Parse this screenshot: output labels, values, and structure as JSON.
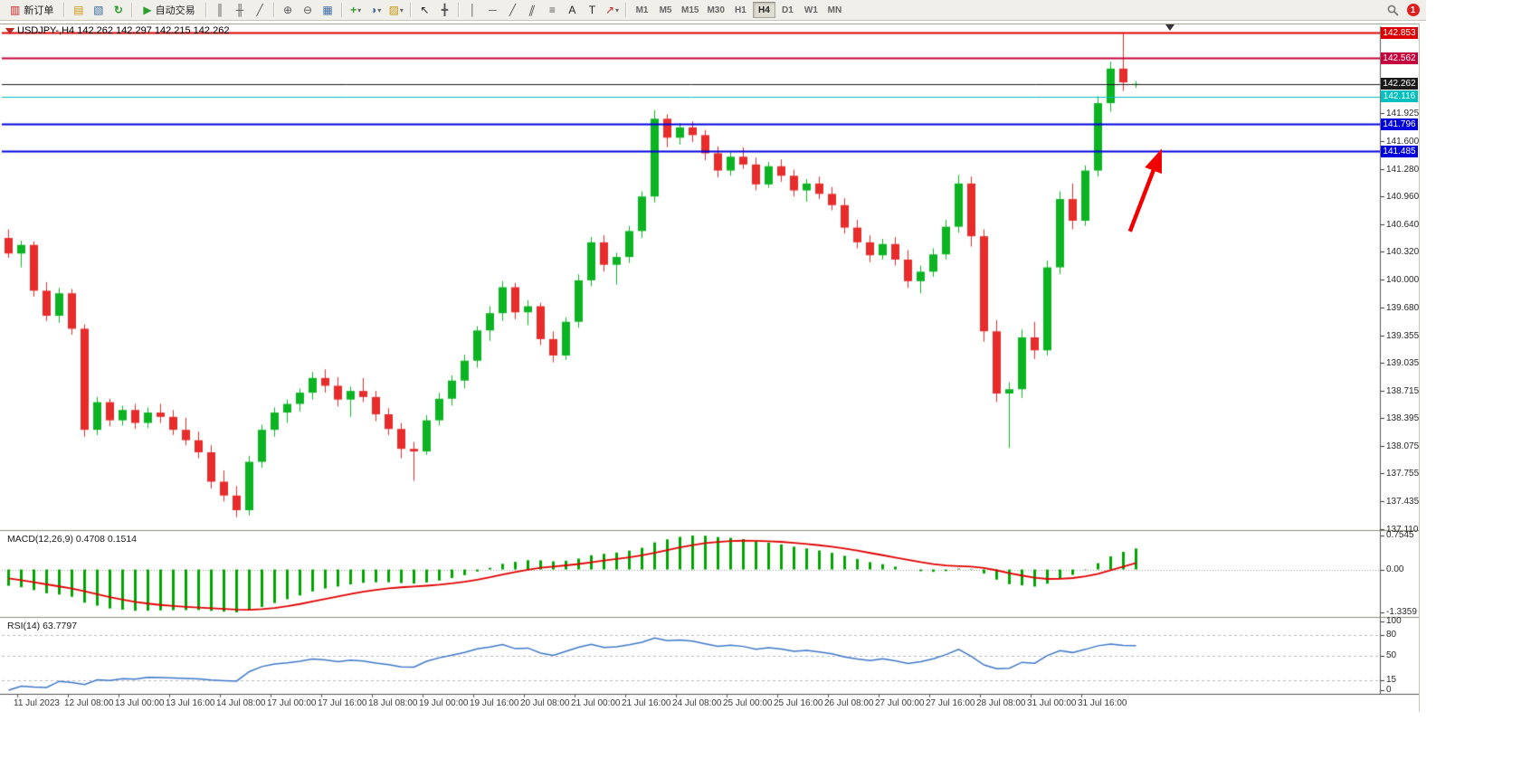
{
  "toolbar": {
    "new_order_label": "新订单",
    "auto_trading_label": "自动交易",
    "icons": {
      "new_order": "▥",
      "market_watch": "▤",
      "navigator": "▧",
      "refresh": "↻",
      "auto_play": "▶",
      "bar_chart": "║",
      "candle_chart": "╫",
      "line_chart": "╱",
      "zoom_in": "⊕",
      "zoom_out": "⊖",
      "tile_windows": "▦",
      "indicators": "+",
      "periods": "◑",
      "templates": "▨",
      "dropdown": "▾",
      "cursor": "↖",
      "crosshair": "╋",
      "vline": "│",
      "hline": "─",
      "trendline": "╱",
      "channel": "∥",
      "fibonacci": "≡",
      "text": "A",
      "text_label": "T",
      "arrows": "↗"
    },
    "timeframes": [
      "M1",
      "M5",
      "M15",
      "M30",
      "H1",
      "H4",
      "D1",
      "W1",
      "MN"
    ],
    "active_timeframe": "H4",
    "notification_badge": "1"
  },
  "chart": {
    "title": "USDJPY-,H4 142.262 142.297 142.215 142.262",
    "hlines": [
      {
        "price": 142.853,
        "label": "142.853",
        "color": "#dd0000",
        "width": 2
      },
      {
        "price": 142.562,
        "label": "142.562",
        "color": "#c4003c",
        "width": 2
      },
      {
        "price": 142.262,
        "label": "142.262",
        "color": "#1a1a1a",
        "width": 1,
        "role": "current-price"
      },
      {
        "price": 142.116,
        "label": "142.116",
        "color": "#00bfbf",
        "width": 1
      },
      {
        "price": 141.796,
        "label": "141.796",
        "color": "#0000dd",
        "width": 2
      },
      {
        "price": 141.485,
        "label": "141.485",
        "color": "#0000dd",
        "width": 2
      }
    ],
    "price_scale": [
      "141.925",
      "141.600",
      "141.280",
      "140.960",
      "140.640",
      "140.320",
      "140.000",
      "139.680",
      "139.355",
      "139.035",
      "138.715",
      "138.395",
      "138.075",
      "137.755",
      "137.435",
      "137.110"
    ],
    "colors": {
      "up": "#0cb423",
      "down": "#e82c2c",
      "macd_hist": "#00a400",
      "macd_signal": "#e00000",
      "rsi_line": "#3d77c9"
    }
  },
  "indicators": {
    "macd_label": "MACD(12,26,9) 0.4708 0.1514",
    "macd_scale": [
      "0.7545",
      "0.00",
      "-1.3359"
    ],
    "rsi_label": "RSI(14) 63.7797",
    "rsi_scale": [
      "100",
      "80",
      "50",
      "15",
      "0"
    ],
    "rsi_levels": [
      80,
      50,
      15
    ]
  },
  "chart_data": {
    "type": "candlestick",
    "symbol": "USDJPY-",
    "timeframe": "H4",
    "title": "USDJPY-,H4",
    "current_bar": {
      "open": 142.262,
      "high": 142.297,
      "low": 142.215,
      "close": 142.262
    },
    "ylim": [
      137.1,
      142.93
    ],
    "x_labels": [
      "11 Jul 2023",
      "12 Jul 08:00",
      "13 Jul 00:00",
      "13 Jul 16:00",
      "14 Jul 08:00",
      "17 Jul 00:00",
      "17 Jul 16:00",
      "18 Jul 08:00",
      "19 Jul 00:00",
      "19 Jul 16:00",
      "20 Jul 08:00",
      "21 Jul 00:00",
      "21 Jul 16:00",
      "24 Jul 08:00",
      "25 Jul 00:00",
      "25 Jul 16:00",
      "26 Jul 08:00",
      "27 Jul 00:00",
      "27 Jul 16:00",
      "28 Jul 08:00",
      "31 Jul 00:00",
      "31 Jul 16:00"
    ],
    "candles": [
      [
        140.48,
        140.58,
        140.25,
        140.3
      ],
      [
        140.3,
        140.45,
        140.14,
        140.4
      ],
      [
        140.4,
        140.44,
        139.8,
        139.87
      ],
      [
        139.87,
        139.97,
        139.52,
        139.58
      ],
      [
        139.58,
        139.9,
        139.5,
        139.84
      ],
      [
        139.84,
        139.89,
        139.36,
        139.43
      ],
      [
        139.43,
        139.48,
        138.18,
        138.26
      ],
      [
        138.26,
        138.64,
        138.2,
        138.58
      ],
      [
        138.58,
        138.62,
        138.3,
        138.37
      ],
      [
        138.37,
        138.54,
        138.31,
        138.49
      ],
      [
        138.49,
        138.56,
        138.27,
        138.34
      ],
      [
        138.34,
        138.52,
        138.28,
        138.46
      ],
      [
        138.46,
        138.56,
        138.34,
        138.41
      ],
      [
        138.41,
        138.49,
        138.2,
        138.26
      ],
      [
        138.26,
        138.4,
        138.08,
        138.14
      ],
      [
        138.14,
        138.24,
        137.93,
        138.0
      ],
      [
        138.0,
        138.08,
        137.58,
        137.66
      ],
      [
        137.66,
        137.79,
        137.43,
        137.5
      ],
      [
        137.5,
        137.61,
        137.25,
        137.33
      ],
      [
        137.33,
        137.96,
        137.27,
        137.89
      ],
      [
        137.89,
        138.32,
        137.82,
        138.26
      ],
      [
        138.26,
        138.52,
        138.18,
        138.46
      ],
      [
        138.46,
        138.61,
        138.34,
        138.56
      ],
      [
        138.56,
        138.74,
        138.47,
        138.69
      ],
      [
        138.69,
        138.93,
        138.61,
        138.86
      ],
      [
        138.86,
        138.96,
        138.69,
        138.77
      ],
      [
        138.77,
        138.87,
        138.53,
        138.61
      ],
      [
        138.61,
        138.76,
        138.41,
        138.71
      ],
      [
        138.71,
        138.86,
        138.58,
        138.64
      ],
      [
        138.64,
        138.71,
        138.36,
        138.44
      ],
      [
        138.44,
        138.51,
        138.2,
        138.27
      ],
      [
        138.27,
        138.34,
        137.93,
        138.04
      ],
      [
        138.04,
        138.12,
        137.67,
        138.01
      ],
      [
        138.01,
        138.43,
        137.97,
        138.37
      ],
      [
        138.37,
        138.69,
        138.31,
        138.62
      ],
      [
        138.62,
        138.89,
        138.54,
        138.83
      ],
      [
        138.83,
        139.13,
        138.74,
        139.06
      ],
      [
        139.06,
        139.46,
        138.98,
        139.41
      ],
      [
        139.41,
        139.69,
        139.29,
        139.61
      ],
      [
        139.61,
        139.98,
        139.52,
        139.91
      ],
      [
        139.91,
        139.96,
        139.54,
        139.62
      ],
      [
        139.62,
        139.76,
        139.47,
        139.69
      ],
      [
        139.69,
        139.73,
        139.24,
        139.31
      ],
      [
        139.31,
        139.4,
        139.04,
        139.12
      ],
      [
        139.12,
        139.56,
        139.07,
        139.51
      ],
      [
        139.51,
        140.06,
        139.44,
        139.99
      ],
      [
        139.99,
        140.49,
        139.92,
        140.43
      ],
      [
        140.43,
        140.51,
        140.09,
        140.17
      ],
      [
        140.17,
        140.31,
        139.94,
        140.26
      ],
      [
        140.26,
        140.62,
        140.19,
        140.56
      ],
      [
        140.56,
        141.02,
        140.48,
        140.96
      ],
      [
        140.96,
        141.96,
        140.89,
        141.86
      ],
      [
        141.86,
        141.91,
        141.53,
        141.64
      ],
      [
        141.64,
        141.81,
        141.56,
        141.76
      ],
      [
        141.76,
        141.83,
        141.59,
        141.67
      ],
      [
        141.67,
        141.73,
        141.38,
        141.46
      ],
      [
        141.46,
        141.54,
        141.18,
        141.26
      ],
      [
        141.26,
        141.47,
        141.2,
        141.42
      ],
      [
        141.42,
        141.53,
        141.28,
        141.33
      ],
      [
        141.33,
        141.41,
        141.03,
        141.1
      ],
      [
        141.1,
        141.36,
        141.06,
        141.31
      ],
      [
        141.31,
        141.39,
        141.13,
        141.2
      ],
      [
        141.2,
        141.27,
        140.96,
        141.03
      ],
      [
        141.03,
        141.16,
        140.9,
        141.11
      ],
      [
        141.11,
        141.19,
        140.93,
        140.99
      ],
      [
        140.99,
        141.07,
        140.8,
        140.86
      ],
      [
        140.86,
        140.94,
        140.53,
        140.6
      ],
      [
        140.6,
        140.69,
        140.36,
        140.43
      ],
      [
        140.43,
        140.51,
        140.2,
        140.28
      ],
      [
        140.28,
        140.47,
        140.23,
        140.41
      ],
      [
        140.41,
        140.49,
        140.16,
        140.23
      ],
      [
        140.23,
        140.34,
        139.9,
        139.98
      ],
      [
        139.98,
        140.16,
        139.84,
        140.09
      ],
      [
        140.09,
        140.36,
        140.03,
        140.29
      ],
      [
        140.29,
        140.69,
        140.23,
        140.61
      ],
      [
        140.61,
        141.21,
        140.54,
        141.11
      ],
      [
        141.11,
        141.19,
        140.38,
        140.5
      ],
      [
        140.5,
        140.58,
        139.28,
        139.4
      ],
      [
        139.4,
        139.53,
        138.58,
        138.68
      ],
      [
        138.68,
        138.81,
        138.05,
        138.73
      ],
      [
        138.73,
        139.42,
        138.63,
        139.33
      ],
      [
        139.33,
        139.51,
        139.08,
        139.18
      ],
      [
        139.18,
        140.22,
        139.12,
        140.14
      ],
      [
        140.14,
        141.02,
        140.06,
        140.93
      ],
      [
        140.93,
        141.11,
        140.58,
        140.68
      ],
      [
        140.68,
        141.32,
        140.62,
        141.26
      ],
      [
        141.26,
        142.12,
        141.19,
        142.04
      ],
      [
        142.04,
        142.52,
        141.94,
        142.44
      ],
      [
        142.44,
        142.853,
        142.18,
        142.28
      ],
      [
        142.262,
        142.297,
        142.215,
        142.262
      ]
    ],
    "indicators": [
      {
        "type": "MACD",
        "fast": 12,
        "slow": 26,
        "signal": 9,
        "current_values": [
          0.4708,
          0.1514
        ],
        "scale_labels": [
          "0.7545",
          "0.00",
          "-1.3359"
        ]
      },
      {
        "type": "RSI",
        "period": 14,
        "current_value": 63.7797,
        "levels": [
          80,
          50,
          15
        ],
        "ylim": [
          0,
          100
        ]
      }
    ]
  }
}
